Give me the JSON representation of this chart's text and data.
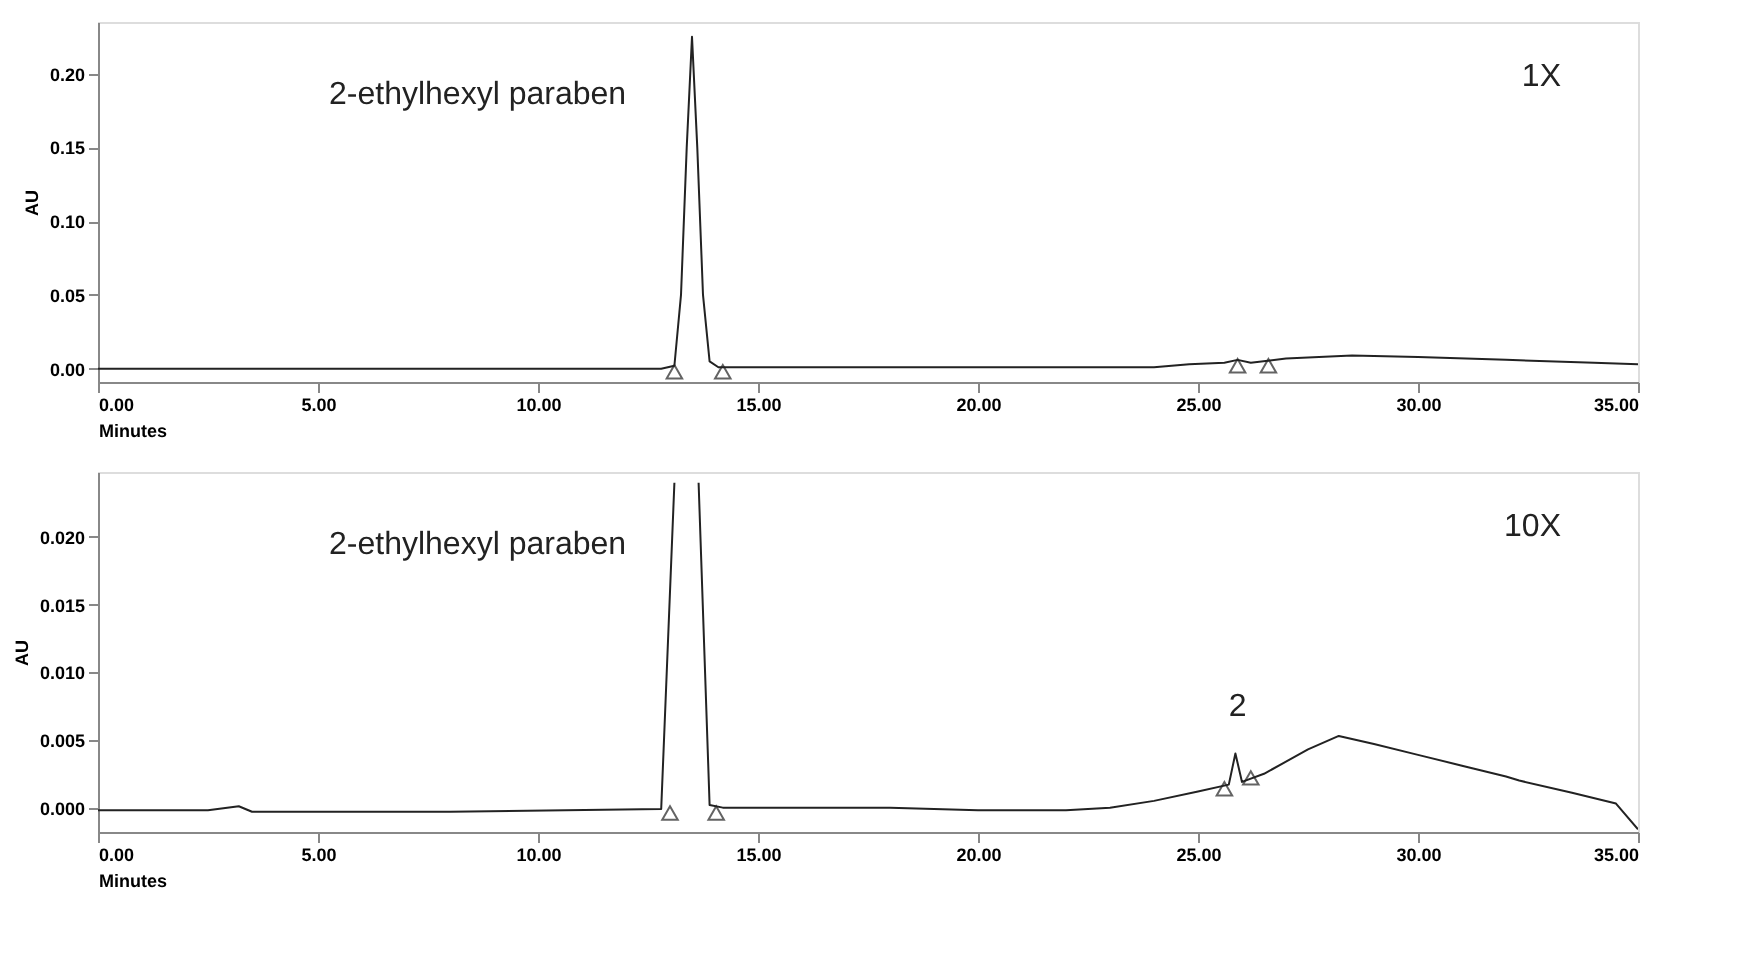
{
  "chart_data": [
    {
      "type": "line",
      "xlabel": "Minutes",
      "ylabel": "AU",
      "xlim": [
        0,
        35
      ],
      "ylim": [
        -0.009,
        0.235
      ],
      "xticks": [
        {
          "value": 0,
          "label": "0.00"
        },
        {
          "value": 5,
          "label": "5.00"
        },
        {
          "value": 10,
          "label": "10.00"
        },
        {
          "value": 15,
          "label": "15.00"
        },
        {
          "value": 20,
          "label": "20.00"
        },
        {
          "value": 25,
          "label": "25.00"
        },
        {
          "value": 30,
          "label": "30.00"
        },
        {
          "value": 35,
          "label": "35.00"
        }
      ],
      "yticks": [
        {
          "value": 0,
          "label": "0.00"
        },
        {
          "value": 0.05,
          "label": "0.05"
        },
        {
          "value": 0.1,
          "label": "0.10"
        },
        {
          "value": 0.15,
          "label": "0.15"
        },
        {
          "value": 0.2,
          "label": "0.20"
        }
      ],
      "grid": false,
      "annotations": [
        "2-ethylhexyl paraben",
        "1X"
      ],
      "series": [
        {
          "color": "#222222",
          "marker": "none",
          "x": [
            0,
            5,
            10,
            12.8,
            13.1,
            13.25,
            13.38,
            13.5,
            13.62,
            13.75,
            13.9,
            14.1,
            20,
            24,
            24.8,
            25.6,
            25.9,
            26.2,
            27,
            28.5,
            30,
            32,
            34,
            35
          ],
          "values": [
            0,
            0,
            0,
            0,
            0.002,
            0.05,
            0.15,
            0.225,
            0.15,
            0.05,
            0.005,
            0.001,
            0.001,
            0.001,
            0.003,
            0.004,
            0.006,
            0.004,
            0.007,
            0.009,
            0.008,
            0.006,
            0.004,
            0.003
          ]
        },
        {
          "type": "scatter",
          "color": "#222222",
          "marker": "triangle",
          "x": [
            13.1,
            14.2,
            25.9,
            26.6
          ],
          "values": [
            -0.002,
            -0.002,
            0.002,
            0.002
          ]
        }
      ]
    },
    {
      "type": "line",
      "xlabel": "Minutes",
      "ylabel": "AU",
      "xlim": [
        0,
        35
      ],
      "ylim": [
        -0.0018,
        0.0248
      ],
      "xticks": [
        {
          "value": 0,
          "label": "0.00"
        },
        {
          "value": 5,
          "label": "5.00"
        },
        {
          "value": 10,
          "label": "10.00"
        },
        {
          "value": 15,
          "label": "15.00"
        },
        {
          "value": 20,
          "label": "20.00"
        },
        {
          "value": 25,
          "label": "25.00"
        },
        {
          "value": 30,
          "label": "30.00"
        },
        {
          "value": 35,
          "label": "35.00"
        }
      ],
      "yticks": [
        {
          "value": 0,
          "label": "0.000"
        },
        {
          "value": 0.005,
          "label": "0.005"
        },
        {
          "value": 0.01,
          "label": "0.010"
        },
        {
          "value": 0.015,
          "label": "0.015"
        },
        {
          "value": 0.02,
          "label": "0.020"
        }
      ],
      "grid": false,
      "annotations": [
        "2-ethylhexyl paraben",
        "10X",
        {
          "text": "2",
          "x": 25.9,
          "y": 0.004
        }
      ],
      "series": [
        {
          "color": "#222222",
          "marker": "none",
          "x": [
            0,
            2.5,
            3.2,
            3.5,
            8,
            12.8,
            13.1,
            13.4,
            13.65,
            13.9,
            14.2,
            18,
            20,
            22,
            23,
            24,
            25,
            25.7,
            25.85,
            26.0,
            26.5,
            27.5,
            28.2,
            29,
            30,
            31,
            32,
            32.3,
            33.5,
            34.5,
            35
          ],
          "values": [
            -0.0002,
            -0.0002,
            0.0001,
            -0.0003,
            -0.0003,
            -0.0001,
            0.024,
            null,
            0.024,
            0.0002,
            0,
            0,
            -0.0002,
            -0.0002,
            0,
            0.0005,
            0.0012,
            0.0017,
            0.004,
            0.0019,
            0.0025,
            0.0043,
            0.0053,
            0.0047,
            0.0039,
            0.0031,
            0.0023,
            0.002,
            0.0011,
            0.0003,
            -0.0016
          ]
        },
        {
          "type": "scatter",
          "color": "#222222",
          "marker": "triangle",
          "x": [
            13.0,
            14.05,
            25.6,
            26.2
          ],
          "values": [
            -0.0004,
            -0.0004,
            0.0014,
            0.0022
          ]
        }
      ]
    }
  ]
}
